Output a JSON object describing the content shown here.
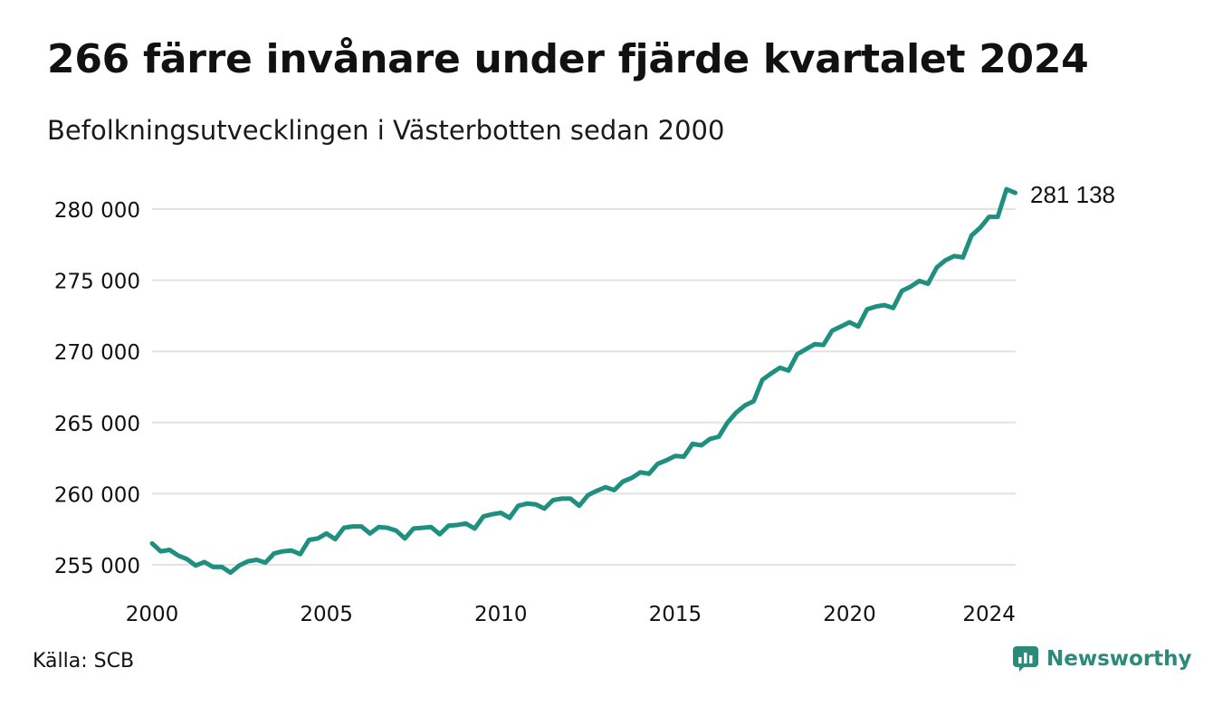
{
  "title": "266 färre invånare under fjärde kvartalet 2024",
  "subtitle": "Befolkningsutvecklingen i Västerbotten sedan 2000",
  "source": "Källa: SCB",
  "brand": {
    "name": "Newsworthy",
    "icon": "newsworthy-logo-icon",
    "color": "#2c8a78"
  },
  "chart_data": {
    "type": "line",
    "title": "266 färre invånare under fjärde kvartalet 2024",
    "subtitle": "Befolkningsutvecklingen i Västerbotten sedan 2000",
    "xlabel": "",
    "ylabel": "",
    "xlim": [
      2000,
      2024.75
    ],
    "ylim": [
      254000,
      282000
    ],
    "yticks": [
      255000,
      260000,
      265000,
      270000,
      275000,
      280000
    ],
    "ytick_labels": [
      "255 000",
      "260 000",
      "265 000",
      "270 000",
      "275 000",
      "280 000"
    ],
    "xticks": [
      2000,
      2005,
      2010,
      2015,
      2020,
      2024
    ],
    "xtick_labels": [
      "2000",
      "2005",
      "2010",
      "2015",
      "2020",
      "2024"
    ],
    "grid": "horizontal",
    "line_color": "#1f8f7f",
    "end_label": "281 138",
    "series": [
      {
        "x": [
          2000.0,
          2000.25,
          2000.5,
          2000.75,
          2001.0,
          2001.25,
          2001.5,
          2001.75,
          2002.0,
          2002.25,
          2002.5,
          2002.75,
          2003.0,
          2003.25,
          2003.5,
          2003.75,
          2004.0,
          2004.25,
          2004.5,
          2004.75,
          2005.0,
          2005.25,
          2005.5,
          2005.75,
          2006.0,
          2006.25,
          2006.5,
          2006.75,
          2007.0,
          2007.25,
          2007.5,
          2007.75,
          2008.0,
          2008.25,
          2008.5,
          2008.75,
          2009.0,
          2009.25,
          2009.5,
          2009.75,
          2010.0,
          2010.25,
          2010.5,
          2010.75,
          2011.0,
          2011.25,
          2011.5,
          2011.75,
          2012.0,
          2012.25,
          2012.5,
          2012.75,
          2013.0,
          2013.25,
          2013.5,
          2013.75,
          2014.0,
          2014.25,
          2014.5,
          2014.75,
          2015.0,
          2015.25,
          2015.5,
          2015.75,
          2016.0,
          2016.25,
          2016.5,
          2016.75,
          2017.0,
          2017.25,
          2017.5,
          2017.75,
          2018.0,
          2018.25,
          2018.5,
          2018.75,
          2019.0,
          2019.25,
          2019.5,
          2019.75,
          2020.0,
          2020.25,
          2020.5,
          2020.75,
          2021.0,
          2021.25,
          2021.5,
          2021.75,
          2022.0,
          2022.25,
          2022.5,
          2022.75,
          2023.0,
          2023.25,
          2023.5,
          2023.75,
          2024.0,
          2024.25,
          2024.5,
          2024.75
        ],
        "values": [
          256500,
          255950,
          256050,
          255650,
          255400,
          254950,
          255200,
          254850,
          254850,
          254450,
          254950,
          255250,
          255350,
          255150,
          255800,
          255950,
          256000,
          255750,
          256750,
          256850,
          257200,
          256800,
          257600,
          257700,
          257700,
          257200,
          257650,
          257600,
          257400,
          256850,
          257550,
          257600,
          257650,
          257150,
          257750,
          257800,
          257900,
          257550,
          258400,
          258550,
          258650,
          258300,
          259150,
          259300,
          259250,
          258950,
          259550,
          259650,
          259650,
          259150,
          259900,
          260200,
          260450,
          260250,
          260850,
          261100,
          261500,
          261400,
          262100,
          262350,
          262650,
          262600,
          263500,
          263400,
          263850,
          264000,
          265000,
          265700,
          266200,
          266500,
          268000,
          268450,
          268850,
          268650,
          269800,
          270150,
          270500,
          270450,
          271450,
          271750,
          272050,
          271750,
          272950,
          273150,
          273250,
          273050,
          274250,
          274550,
          274950,
          274750,
          275900,
          276400,
          276700,
          276600,
          278150,
          278700,
          279450,
          279450,
          281400,
          281138
        ]
      }
    ]
  }
}
